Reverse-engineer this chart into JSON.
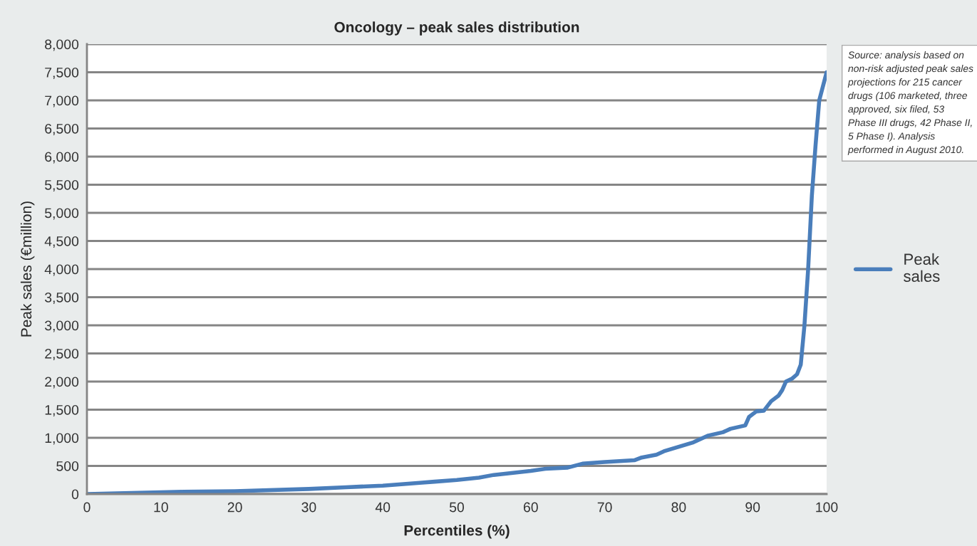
{
  "chart_data": {
    "type": "line",
    "title": "Oncology – peak sales distribution",
    "xlabel": "Percentiles (%)",
    "ylabel": "Peak sales (€million)",
    "annotations": [
      "Source: analysis based on non-risk adjusted peak sales projections for 215 cancer drugs (106 marketed, three approved, six filed, 53 Phase III drugs, 42 Phase II, 5 Phase I). Analysis performed in August 2010."
    ],
    "series": [
      {
        "name": "Peak sales",
        "color": "#4a7ebb",
        "x": [
          0,
          10,
          13,
          20,
          30,
          35,
          40,
          45,
          47,
          50,
          53,
          55,
          60,
          62,
          65,
          67,
          70,
          74,
          75,
          77,
          78,
          80,
          82,
          84,
          86,
          87,
          89,
          89.5,
          90.5,
          91.5,
          92.5,
          93.5,
          94,
          94.5,
          95.3,
          96,
          96.5,
          97,
          97.5,
          98,
          98.5,
          99,
          100
        ],
        "values": [
          0,
          30,
          40,
          50,
          90,
          120,
          150,
          200,
          220,
          250,
          290,
          340,
          410,
          450,
          470,
          540,
          570,
          600,
          650,
          700,
          760,
          840,
          920,
          1040,
          1100,
          1160,
          1220,
          1370,
          1470,
          1480,
          1650,
          1750,
          1850,
          2000,
          2050,
          2130,
          2300,
          3000,
          4000,
          5300,
          6200,
          7000,
          7500
        ]
      }
    ],
    "xlim": [
      0,
      100
    ],
    "xticks": [
      0,
      10,
      20,
      30,
      40,
      50,
      60,
      70,
      80,
      90,
      100
    ],
    "ylim": [
      0,
      8000
    ],
    "yticks": [
      {
        "value": 0,
        "label": "0"
      },
      {
        "value": 500,
        "label": "500"
      },
      {
        "value": 1000,
        "label": "1,000"
      },
      {
        "value": 1500,
        "label": "1,500"
      },
      {
        "value": 2000,
        "label": "2,000"
      },
      {
        "value": 2500,
        "label": "2,500"
      },
      {
        "value": 3000,
        "label": "3,000"
      },
      {
        "value": 3500,
        "label": "3,500"
      },
      {
        "value": 4000,
        "label": "4,000"
      },
      {
        "value": 4500,
        "label": "4,500"
      },
      {
        "value": 5000,
        "label": "5,000"
      },
      {
        "value": 5500,
        "label": "5,500"
      },
      {
        "value": 6000,
        "label": "6,000"
      },
      {
        "value": 6500,
        "label": "6,500"
      },
      {
        "value": 7000,
        "label": "7,000"
      },
      {
        "value": 7500,
        "label": "7,500"
      },
      {
        "value": 8000,
        "label": "8,000"
      }
    ],
    "grid": "y",
    "legend": "right",
    "marker": "none",
    "line_style": "solid"
  }
}
